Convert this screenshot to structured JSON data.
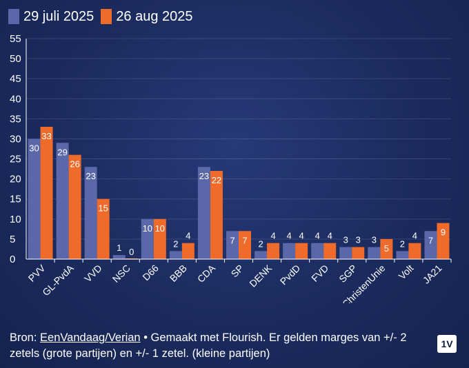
{
  "legend": [
    {
      "label": "29 juli 2025",
      "color": "#5a67a8"
    },
    {
      "label": "26 aug 2025",
      "color": "#f06a2a"
    }
  ],
  "chart_data": {
    "type": "bar",
    "categories": [
      "PVV",
      "GL-PvdA",
      "VVD",
      "NSC",
      "D66",
      "BBB",
      "CDA",
      "SP",
      "DENK",
      "PvdD",
      "FVD",
      "SGP",
      "ChristenUnie",
      "Volt",
      "JA21"
    ],
    "series": [
      {
        "name": "29 juli 2025",
        "values": [
          30,
          29,
          23,
          1,
          10,
          2,
          23,
          7,
          2,
          4,
          4,
          3,
          3,
          2,
          7
        ]
      },
      {
        "name": "26 aug 2025",
        "values": [
          33,
          26,
          15,
          0,
          10,
          4,
          22,
          7,
          4,
          4,
          4,
          3,
          5,
          4,
          9
        ]
      }
    ],
    "yticks": [
      "0",
      "5",
      "10",
      "15",
      "20",
      "25",
      "30",
      "35",
      "40",
      "45",
      "50",
      "55"
    ],
    "ylim": [
      0,
      55
    ],
    "title": "",
    "xlabel": "",
    "ylabel": ""
  },
  "footer": {
    "prefix": "Bron: ",
    "source": "EenVandaag/Verian",
    "text": " • Gemaakt met Flourish. Er gelden marges van +/- 2 zetels (grote partijen) en +/- 1 zetel. (kleine partijen)"
  },
  "logo": "1V"
}
